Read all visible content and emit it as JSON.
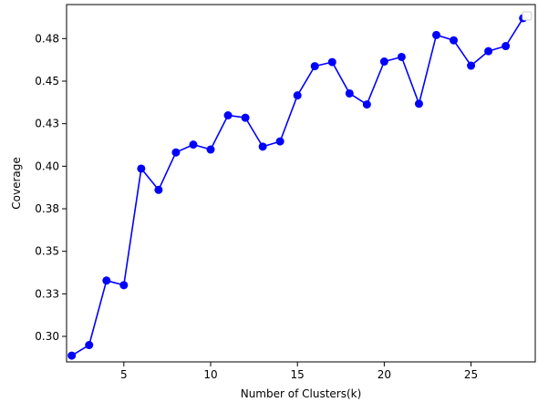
{
  "chart_data": {
    "type": "line",
    "xlabel": "Number of Clusters(k)",
    "ylabel": "Coverage",
    "xlim": [
      1.7,
      28.7
    ],
    "ylim": [
      0.2825,
      0.4925
    ],
    "x_ticks": [
      5,
      10,
      15,
      20,
      25
    ],
    "x_tick_labels": [
      "5",
      "10",
      "15",
      "20",
      "25"
    ],
    "y_ticks": [
      0.2975,
      0.3225,
      0.3475,
      0.3725,
      0.3975,
      0.4225,
      0.4475,
      0.4725
    ],
    "y_tick_labels": [
      "0.30",
      "0.33",
      "0.35",
      "0.38",
      "0.40",
      "0.43",
      "0.45",
      "0.48"
    ],
    "grid": false,
    "legend": {
      "placement": "top-right",
      "entries": []
    },
    "color": "#0000ff",
    "series": [
      {
        "x": [
          2,
          3,
          4,
          5,
          6,
          7,
          8,
          9,
          10,
          11,
          12,
          13,
          14,
          15,
          16,
          17,
          18,
          19,
          20,
          21,
          22,
          23,
          24,
          25,
          26,
          27,
          28
        ],
        "y": [
          0.2862,
          0.2924,
          0.3303,
          0.3276,
          0.3961,
          0.3836,
          0.4056,
          0.4102,
          0.4073,
          0.4274,
          0.426,
          0.409,
          0.4121,
          0.4391,
          0.4563,
          0.4587,
          0.4403,
          0.4338,
          0.459,
          0.4617,
          0.4342,
          0.4746,
          0.4715,
          0.4566,
          0.4651,
          0.4681,
          0.4845
        ]
      }
    ]
  }
}
